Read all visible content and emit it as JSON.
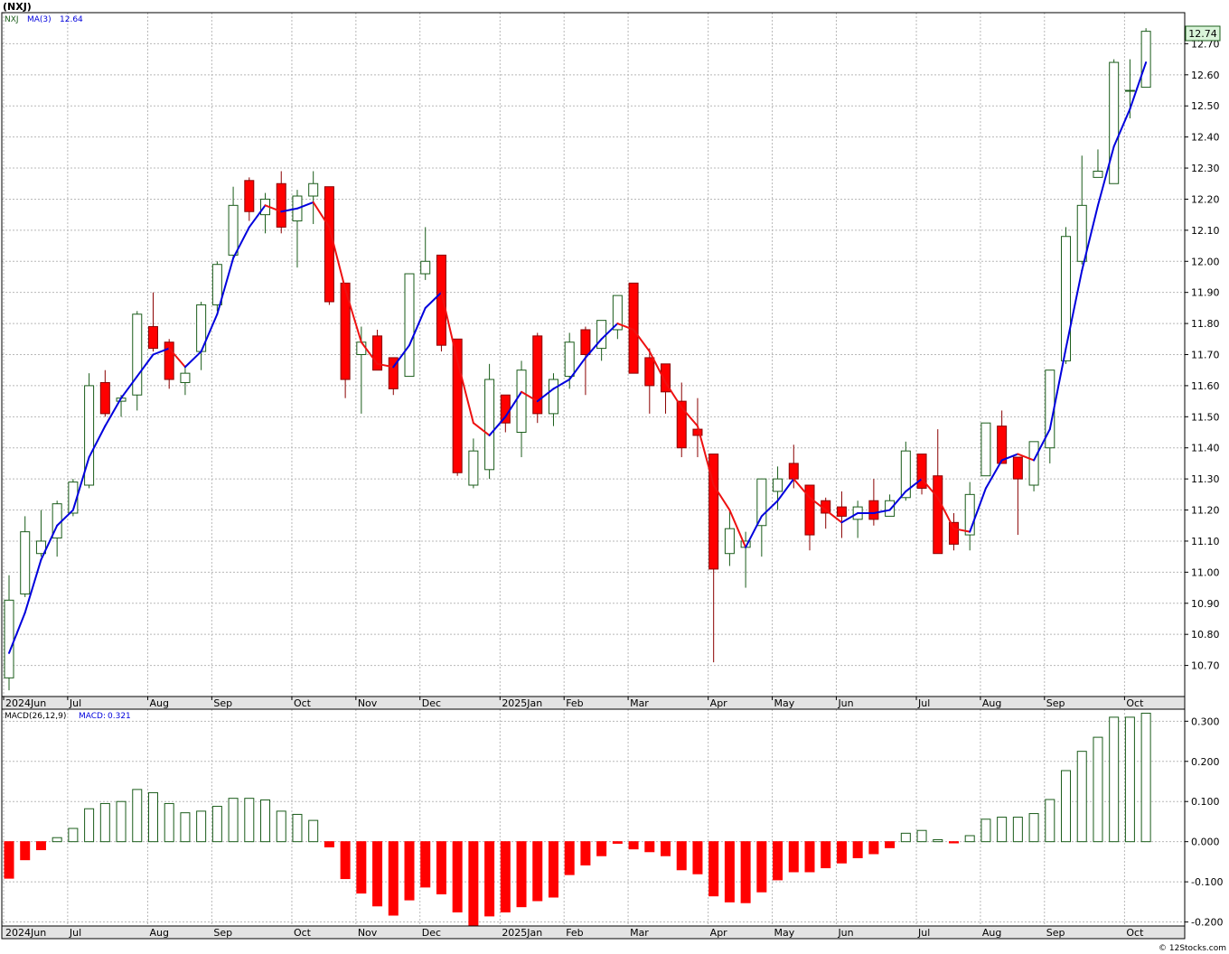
{
  "header": {
    "symbol_label": "(NXJ)"
  },
  "footer": {
    "credit": "© 12Stocks.com"
  },
  "colors": {
    "up_border": "#1a5c1a",
    "up_fill": "#ffffff",
    "down_fill": "#ff0000",
    "down_border": "#8b0000",
    "ma_up": "#0000dd",
    "ma_down": "#ee1111",
    "grid": "#b8b8b8",
    "panel_border": "#000000",
    "axis_band": "#e3e3e3",
    "price_box": "#d8f3d8"
  },
  "chart_data": [
    {
      "type": "candlestick",
      "legend": {
        "symbol": "NXJ",
        "ma_label": "MA(3)",
        "ma_value": "12.64"
      },
      "last_price_label": "12.74",
      "ylim": [
        10.6,
        12.8
      ],
      "y_ticks": [
        "10.70",
        "10.80",
        "10.90",
        "11.00",
        "11.10",
        "11.20",
        "11.30",
        "11.40",
        "11.50",
        "11.60",
        "11.70",
        "11.80",
        "11.90",
        "12.00",
        "12.10",
        "12.20",
        "12.30",
        "12.40",
        "12.50",
        "12.60",
        "12.70"
      ],
      "x_labels": [
        {
          "label": "2024Jun",
          "index": 0
        },
        {
          "label": "Jul",
          "index": 4
        },
        {
          "label": "Aug",
          "index": 9
        },
        {
          "label": "Sep",
          "index": 13
        },
        {
          "label": "Oct",
          "index": 18
        },
        {
          "label": "Nov",
          "index": 22
        },
        {
          "label": "Dec",
          "index": 26
        },
        {
          "label": "2025Jan",
          "index": 31
        },
        {
          "label": "Feb",
          "index": 35
        },
        {
          "label": "Mar",
          "index": 39
        },
        {
          "label": "Apr",
          "index": 44
        },
        {
          "label": "May",
          "index": 48
        },
        {
          "label": "Jun",
          "index": 52
        },
        {
          "label": "Jul",
          "index": 57
        },
        {
          "label": "Aug",
          "index": 61
        },
        {
          "label": "Sep",
          "index": 65
        },
        {
          "label": "Oct",
          "index": 70
        }
      ],
      "ohlc": [
        [
          10.66,
          10.99,
          10.62,
          10.91
        ],
        [
          10.93,
          11.18,
          10.92,
          11.13
        ],
        [
          11.06,
          11.2,
          11.05,
          11.1
        ],
        [
          11.11,
          11.23,
          11.05,
          11.22
        ],
        [
          11.19,
          11.3,
          11.18,
          11.29
        ],
        [
          11.28,
          11.64,
          11.27,
          11.6
        ],
        [
          11.61,
          11.65,
          11.5,
          11.51
        ],
        [
          11.55,
          11.57,
          11.5,
          11.56
        ],
        [
          11.57,
          11.84,
          11.52,
          11.83
        ],
        [
          11.79,
          11.9,
          11.71,
          11.72
        ],
        [
          11.74,
          11.75,
          11.59,
          11.62
        ],
        [
          11.61,
          11.66,
          11.57,
          11.64
        ],
        [
          11.71,
          11.87,
          11.65,
          11.86
        ],
        [
          11.86,
          12.0,
          11.84,
          11.99
        ],
        [
          12.02,
          12.24,
          12.01,
          12.18
        ],
        [
          12.26,
          12.27,
          12.13,
          12.16
        ],
        [
          12.15,
          12.22,
          12.09,
          12.2
        ],
        [
          12.25,
          12.29,
          12.09,
          12.11
        ],
        [
          12.13,
          12.23,
          11.98,
          12.21
        ],
        [
          12.21,
          12.29,
          12.12,
          12.25
        ],
        [
          12.24,
          12.24,
          11.86,
          11.87
        ],
        [
          11.93,
          11.93,
          11.56,
          11.62
        ],
        [
          11.7,
          11.79,
          11.51,
          11.74
        ],
        [
          11.76,
          11.78,
          11.65,
          11.65
        ],
        [
          11.69,
          11.69,
          11.57,
          11.59
        ],
        [
          11.63,
          11.96,
          11.63,
          11.96
        ],
        [
          11.96,
          12.11,
          11.94,
          12.0
        ],
        [
          12.02,
          12.02,
          11.71,
          11.73
        ],
        [
          11.75,
          11.75,
          11.31,
          11.32
        ],
        [
          11.28,
          11.43,
          11.27,
          11.39
        ],
        [
          11.33,
          11.67,
          11.3,
          11.62
        ],
        [
          11.57,
          11.57,
          11.45,
          11.48
        ],
        [
          11.45,
          11.68,
          11.37,
          11.65
        ],
        [
          11.76,
          11.77,
          11.48,
          11.51
        ],
        [
          11.51,
          11.64,
          11.47,
          11.62
        ],
        [
          11.63,
          11.77,
          11.59,
          11.74
        ],
        [
          11.78,
          11.79,
          11.57,
          11.7
        ],
        [
          11.72,
          11.81,
          11.68,
          11.81
        ],
        [
          11.78,
          11.89,
          11.75,
          11.89
        ],
        [
          11.93,
          11.93,
          11.64,
          11.64
        ],
        [
          11.69,
          11.72,
          11.51,
          11.6
        ],
        [
          11.67,
          11.67,
          11.51,
          11.58
        ],
        [
          11.55,
          11.61,
          11.37,
          11.4
        ],
        [
          11.46,
          11.56,
          11.37,
          11.44
        ],
        [
          11.38,
          11.38,
          10.71,
          11.01
        ],
        [
          11.06,
          11.2,
          11.02,
          11.14
        ],
        [
          11.08,
          11.13,
          10.95,
          11.1
        ],
        [
          11.15,
          11.3,
          11.05,
          11.3
        ],
        [
          11.26,
          11.34,
          11.2,
          11.3
        ],
        [
          11.35,
          11.41,
          11.27,
          11.3
        ],
        [
          11.28,
          11.28,
          11.07,
          11.12
        ],
        [
          11.23,
          11.24,
          11.14,
          11.19
        ],
        [
          11.21,
          11.26,
          11.11,
          11.18
        ],
        [
          11.17,
          11.23,
          11.11,
          11.21
        ],
        [
          11.23,
          11.3,
          11.15,
          11.17
        ],
        [
          11.18,
          11.25,
          11.18,
          11.23
        ],
        [
          11.24,
          11.42,
          11.23,
          11.39
        ],
        [
          11.38,
          11.38,
          11.25,
          11.27
        ],
        [
          11.31,
          11.46,
          11.06,
          11.06
        ],
        [
          11.16,
          11.19,
          11.07,
          11.09
        ],
        [
          11.12,
          11.29,
          11.07,
          11.25
        ],
        [
          11.31,
          11.48,
          11.31,
          11.48
        ],
        [
          11.47,
          11.52,
          11.35,
          11.35
        ],
        [
          11.37,
          11.37,
          11.12,
          11.3
        ],
        [
          11.28,
          11.42,
          11.26,
          11.42
        ],
        [
          11.4,
          11.65,
          11.35,
          11.65
        ],
        [
          11.68,
          12.11,
          11.67,
          12.08
        ],
        [
          12.0,
          12.34,
          11.99,
          12.18
        ],
        [
          12.27,
          12.36,
          12.27,
          12.29
        ],
        [
          12.25,
          12.65,
          12.25,
          12.64
        ],
        [
          12.55,
          12.65,
          12.46,
          12.55
        ],
        [
          12.56,
          12.75,
          12.56,
          12.74
        ]
      ],
      "ma3": [
        10.74,
        10.87,
        11.04,
        11.15,
        11.2,
        11.37,
        11.47,
        11.56,
        11.63,
        11.7,
        11.72,
        11.66,
        11.71,
        11.83,
        12.01,
        12.11,
        12.18,
        12.16,
        12.17,
        12.19,
        12.11,
        11.91,
        11.74,
        11.67,
        11.66,
        11.73,
        11.85,
        11.9,
        11.68,
        11.48,
        11.44,
        11.5,
        11.58,
        11.55,
        11.59,
        11.62,
        11.69,
        11.75,
        11.8,
        11.78,
        11.71,
        11.61,
        11.53,
        11.47,
        11.28,
        11.2,
        11.08,
        11.18,
        11.23,
        11.3,
        11.24,
        11.2,
        11.16,
        11.19,
        11.19,
        11.2,
        11.26,
        11.3,
        11.24,
        11.14,
        11.13,
        11.27,
        11.36,
        11.38,
        11.36,
        11.46,
        11.72,
        11.97,
        12.18,
        12.37,
        12.49,
        12.64
      ],
      "ma_color_by_segment": [
        "up",
        "up",
        "up",
        "up",
        "up",
        "up",
        "up",
        "up",
        "up",
        "up",
        "down",
        "up",
        "up",
        "up",
        "up",
        "up",
        "down",
        "up",
        "up",
        "down",
        "down",
        "down",
        "down",
        "down",
        "up",
        "up",
        "up",
        "down",
        "down",
        "down",
        "up",
        "up",
        "down",
        "up",
        "up",
        "up",
        "up",
        "up",
        "down",
        "down",
        "down",
        "down",
        "down",
        "down",
        "down",
        "down",
        "up",
        "up",
        "up",
        "down",
        "down",
        "down",
        "up",
        "up",
        "up",
        "up",
        "up",
        "down",
        "down",
        "down",
        "up",
        "up",
        "up",
        "down",
        "up",
        "up",
        "up",
        "up",
        "up",
        "up",
        "up"
      ]
    },
    {
      "type": "bar",
      "legend": {
        "name": "MACD(26,12,9)",
        "label": "MACD:",
        "value": "0.321"
      },
      "ylim": [
        -0.21,
        0.33
      ],
      "y_ticks": [
        "-0.200",
        "-0.100",
        "0.000",
        "0.100",
        "0.200",
        "0.300"
      ],
      "values": [
        -0.091,
        -0.045,
        -0.02,
        0.01,
        0.033,
        0.082,
        0.095,
        0.1,
        0.13,
        0.122,
        0.095,
        0.072,
        0.076,
        0.088,
        0.108,
        0.108,
        0.104,
        0.076,
        0.068,
        0.053,
        -0.013,
        -0.092,
        -0.128,
        -0.16,
        -0.183,
        -0.145,
        -0.113,
        -0.13,
        -0.175,
        -0.208,
        -0.185,
        -0.175,
        -0.162,
        -0.147,
        -0.138,
        -0.082,
        -0.058,
        -0.035,
        -0.004,
        -0.018,
        -0.025,
        -0.035,
        -0.07,
        -0.08,
        -0.135,
        -0.15,
        -0.152,
        -0.125,
        -0.095,
        -0.075,
        -0.075,
        -0.065,
        -0.053,
        -0.04,
        -0.03,
        -0.015,
        0.021,
        0.028,
        0.005,
        -0.003,
        0.015,
        0.056,
        0.061,
        0.061,
        0.07,
        0.105,
        0.177,
        0.225,
        0.26,
        0.31,
        0.31,
        0.32
      ]
    }
  ]
}
